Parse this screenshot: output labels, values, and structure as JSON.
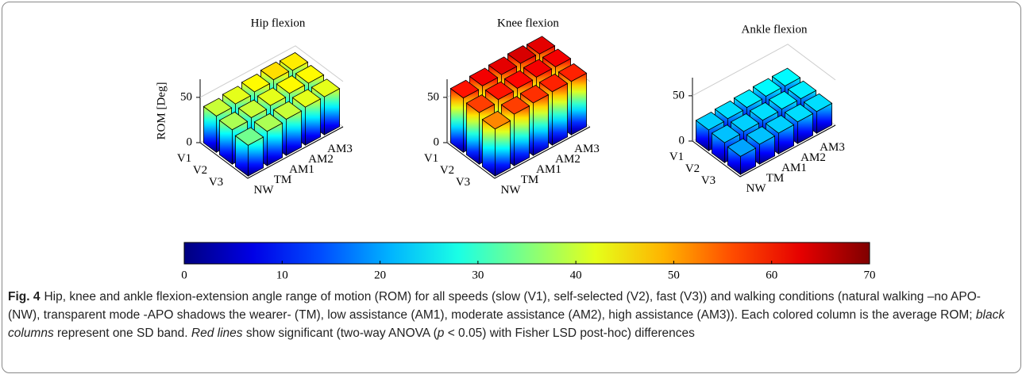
{
  "figure": {
    "panels": [
      {
        "title": "Hip flexion",
        "zlabel": "ROM [Deg]",
        "zlim": [
          0,
          70
        ],
        "zticks": [
          0,
          50
        ],
        "speeds": [
          "V1",
          "V2",
          "V3"
        ],
        "conditions": [
          "NW",
          "TM",
          "AM1",
          "AM2",
          "AM3"
        ],
        "values": [
          [
            40,
            42,
            44,
            46,
            45
          ],
          [
            38,
            40,
            42,
            44,
            44
          ],
          [
            34,
            38,
            40,
            42,
            42
          ]
        ]
      },
      {
        "title": "Knee flexion",
        "zlim": [
          0,
          70
        ],
        "zticks": [
          0,
          50
        ],
        "speeds": [
          "V1",
          "V2",
          "V3"
        ],
        "conditions": [
          "NW",
          "TM",
          "AM1",
          "AM2",
          "AM3"
        ],
        "values": [
          [
            60,
            62,
            63,
            64,
            63
          ],
          [
            57,
            60,
            61,
            62,
            62
          ],
          [
            52,
            57,
            58,
            59,
            59
          ]
        ]
      },
      {
        "title": "Ankle flexion",
        "zlim": [
          0,
          70
        ],
        "zticks": [
          0,
          50
        ],
        "speeds": [
          "V1",
          "V2",
          "V3"
        ],
        "conditions": [
          "NW",
          "TM",
          "AM1",
          "AM2",
          "AM3"
        ],
        "values": [
          [
            23,
            24,
            25,
            26,
            26
          ],
          [
            22,
            23,
            24,
            25,
            25
          ],
          [
            20,
            22,
            23,
            24,
            24
          ]
        ]
      }
    ],
    "colorbar": {
      "colormap": "jet",
      "lim": [
        0,
        70
      ],
      "ticks": [
        0,
        10,
        20,
        30,
        40,
        50,
        60,
        70
      ]
    },
    "caption": {
      "label": "Fig. 4",
      "segments": [
        {
          "text": "Hip, knee and ankle flexion-extension angle range of motion (ROM) for all speeds (slow (V1), self-selected (V2), fast (V3)) and walking conditions (natural walking –no APO- (NW), transparent mode -APO shadows the wearer- (TM), low assistance (AM1), moderate assistance (AM2), high assistance (AM3)). Each colored column is the average ROM; ",
          "italic": false
        },
        {
          "text": "black columns",
          "italic": true
        },
        {
          "text": " represent one SD band. ",
          "italic": false
        },
        {
          "text": "Red lines",
          "italic": true
        },
        {
          "text": " show significant (two-way ANOVA (",
          "italic": false
        },
        {
          "text": "p",
          "italic": true
        },
        {
          "text": " < 0.05) with Fisher LSD post-hoc) differences",
          "italic": false
        }
      ]
    }
  }
}
